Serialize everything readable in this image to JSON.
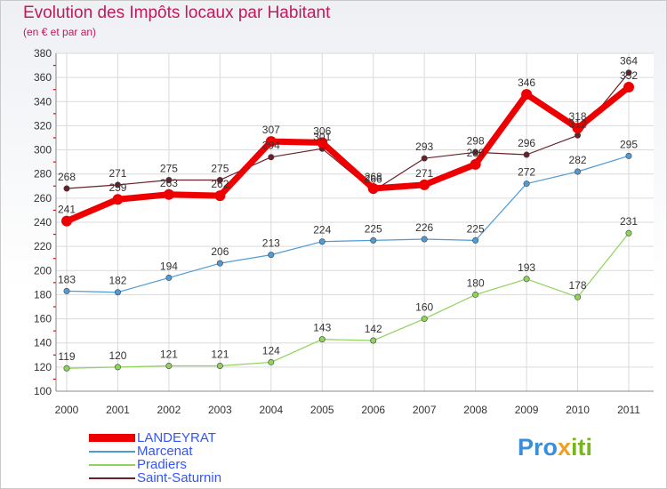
{
  "chart_data": {
    "type": "line",
    "title": "Evolution des Impôts locaux par Habitant",
    "subtitle": "(en € et par an)",
    "x": [
      "2000",
      "2001",
      "2002",
      "2003",
      "2004",
      "2005",
      "2006",
      "2007",
      "2008",
      "2009",
      "2010",
      "2011"
    ],
    "ylim": [
      100,
      380
    ],
    "yticks": [
      100,
      120,
      140,
      160,
      180,
      200,
      220,
      240,
      260,
      280,
      300,
      320,
      340,
      360,
      380
    ],
    "grid": true,
    "legend_position": "bottom-left",
    "series": [
      {
        "name": "LANDEYRAT",
        "color": "#ee0000",
        "values": [
          241,
          259,
          263,
          262,
          307,
          306,
          268,
          271,
          288,
          346,
          318,
          352
        ],
        "labels": [
          "241",
          "259",
          "263",
          "262",
          "307",
          "306",
          "268",
          "271",
          "288",
          "346",
          "318",
          "352"
        ]
      },
      {
        "name": "Marcenat",
        "color": "#4f9bd6",
        "values": [
          183,
          182,
          194,
          206,
          213,
          224,
          225,
          226,
          225,
          272,
          282,
          295
        ],
        "labels": [
          "183",
          "182",
          "194",
          "206",
          "213",
          "224",
          "225",
          "226",
          "225",
          "272",
          "282",
          "295"
        ]
      },
      {
        "name": "Pradiers",
        "color": "#8ed35a",
        "values": [
          119,
          120,
          121,
          121,
          124,
          143,
          142,
          160,
          180,
          193,
          178,
          231
        ],
        "labels": [
          "119",
          "120",
          "121",
          "121",
          "124",
          "143",
          "142",
          "160",
          "180",
          "193",
          "178",
          "231"
        ]
      },
      {
        "name": "Saint-Saturnin",
        "color": "#6b1f2a",
        "values": [
          268,
          271,
          275,
          275,
          294,
          301,
          266,
          293,
          298,
          296,
          312,
          364
        ],
        "labels": [
          "268",
          "271",
          "275",
          "275",
          "294",
          "301",
          "266",
          "293",
          "298",
          "296",
          "312",
          "364"
        ]
      }
    ]
  },
  "logo": {
    "text_1": "Pro",
    "text_2": "x",
    "text_3": "iti"
  }
}
